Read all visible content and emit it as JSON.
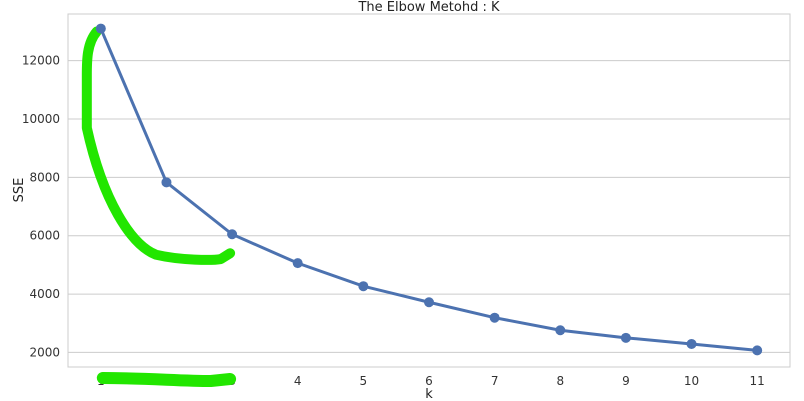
{
  "chart_data": {
    "type": "line",
    "title": "The Elbow Metohd : K",
    "xlabel": "k",
    "ylabel": "SSE",
    "x": [
      1,
      2,
      3,
      4,
      5,
      6,
      7,
      8,
      9,
      10,
      11
    ],
    "series": [
      {
        "values": [
          13100,
          7830,
          6050,
          5060,
          4270,
          3720,
          3190,
          2760,
          2500,
          2290,
          2070
        ]
      }
    ],
    "yticks": [
      2000,
      4000,
      6000,
      8000,
      10000,
      12000
    ],
    "xticks": [
      1,
      2,
      3,
      4,
      5,
      6,
      7,
      8,
      9,
      10,
      11
    ],
    "ylim": [
      1500,
      13600
    ],
    "xlim": [
      0.5,
      11.5
    ],
    "grid": "horizontal",
    "line_color": "#4c72b0",
    "annotation_color": "#22e600"
  }
}
